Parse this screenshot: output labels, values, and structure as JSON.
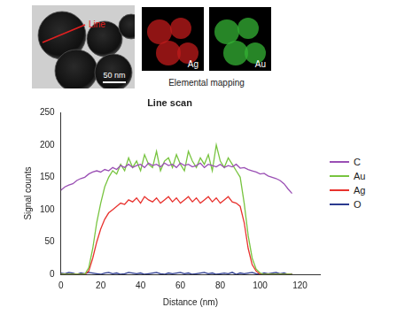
{
  "figure": {
    "tem_image": {
      "line_label": "Line",
      "scale_bar": "50 nm"
    },
    "elemental_mapping": {
      "title": "Elemental mapping",
      "maps": [
        {
          "label": "Ag",
          "color": "#e02020"
        },
        {
          "label": "Au",
          "color": "#3ed23e"
        }
      ]
    }
  },
  "chart_data": {
    "type": "line",
    "title": "Line scan",
    "x_label": "Distance (nm)",
    "y_label": "Signal counts",
    "x": [
      0,
      2,
      4,
      6,
      8,
      10,
      12,
      14,
      16,
      18,
      20,
      22,
      24,
      26,
      28,
      30,
      32,
      34,
      36,
      38,
      40,
      42,
      44,
      46,
      48,
      50,
      52,
      54,
      56,
      58,
      60,
      62,
      64,
      66,
      68,
      70,
      72,
      74,
      76,
      78,
      80,
      82,
      84,
      86,
      88,
      90,
      92,
      94,
      96,
      98,
      100,
      102,
      104,
      106,
      108,
      110,
      112,
      114,
      116
    ],
    "series": [
      {
        "name": "C",
        "color": "#9a4fb4",
        "values": [
          130,
          135,
          138,
          140,
          145,
          148,
          150,
          155,
          158,
          160,
          158,
          162,
          160,
          165,
          162,
          168,
          165,
          170,
          165,
          168,
          170,
          165,
          172,
          168,
          170,
          166,
          172,
          168,
          170,
          165,
          172,
          168,
          170,
          166,
          168,
          172,
          165,
          170,
          168,
          166,
          170,
          165,
          168,
          166,
          170,
          164,
          165,
          162,
          160,
          158,
          155,
          156,
          152,
          150,
          148,
          145,
          140,
          132,
          125
        ]
      },
      {
        "name": "Au",
        "color": "#78c440",
        "values": [
          0,
          0,
          0,
          0,
          0,
          0,
          0,
          10,
          40,
          80,
          110,
          135,
          150,
          160,
          155,
          170,
          160,
          180,
          165,
          175,
          160,
          185,
          170,
          165,
          190,
          160,
          175,
          180,
          165,
          185,
          170,
          160,
          190,
          175,
          165,
          180,
          170,
          185,
          160,
          200,
          175,
          165,
          180,
          170,
          160,
          150,
          110,
          60,
          25,
          8,
          2,
          0,
          0,
          0,
          0,
          0,
          0,
          0,
          0
        ]
      },
      {
        "name": "Ag",
        "color": "#e8322e",
        "values": [
          0,
          0,
          0,
          0,
          0,
          0,
          0,
          5,
          25,
          50,
          70,
          85,
          95,
          100,
          105,
          110,
          108,
          115,
          112,
          118,
          110,
          120,
          115,
          112,
          118,
          110,
          115,
          120,
          112,
          118,
          110,
          115,
          120,
          112,
          118,
          110,
          115,
          120,
          112,
          118,
          110,
          115,
          120,
          112,
          110,
          105,
          80,
          40,
          15,
          5,
          0,
          0,
          0,
          0,
          0,
          0,
          0,
          0,
          0
        ]
      },
      {
        "name": "O",
        "color": "#2b3a8f",
        "values": [
          2,
          1,
          3,
          2,
          0,
          2,
          1,
          3,
          2,
          1,
          0,
          2,
          3,
          1,
          2,
          0,
          1,
          3,
          2,
          1,
          2,
          0,
          1,
          2,
          3,
          1,
          0,
          2,
          1,
          2,
          3,
          1,
          2,
          0,
          1,
          2,
          3,
          1,
          2,
          0,
          1,
          2,
          1,
          3,
          0,
          2,
          1,
          2,
          3,
          1,
          0,
          2,
          1,
          2,
          3,
          1,
          2,
          0,
          1
        ]
      }
    ],
    "xlim": [
      0,
      130
    ],
    "xticks": [
      0,
      20,
      40,
      60,
      80,
      100,
      120
    ],
    "ylim": [
      0,
      250
    ],
    "yticks": [
      0,
      50,
      100,
      150,
      200,
      250
    ],
    "legend": "right",
    "grid": false
  }
}
